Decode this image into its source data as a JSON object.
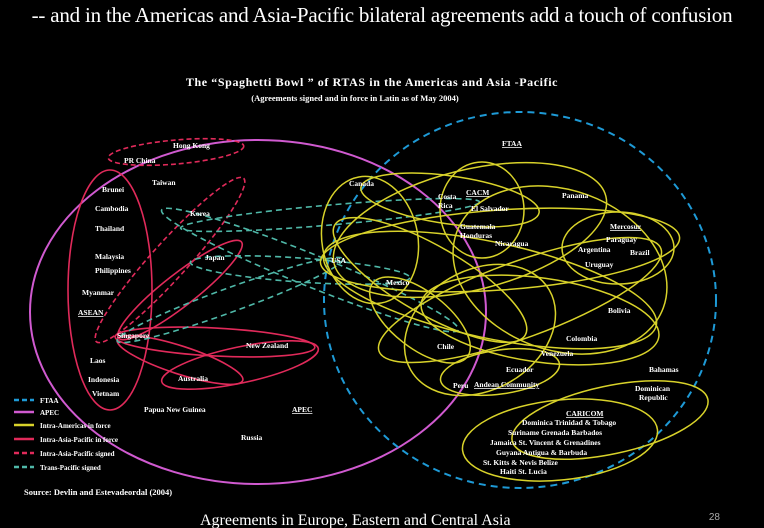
{
  "headline": "-- and in the Americas and Asia-Pacific bilateral agreements add a touch of confusion",
  "title": "The “Spaghetti Bowl ” of RTAS in the Americas and Asia -Pacific",
  "subtitle": "(Agreements signed and in force in Latin as of May 2004)",
  "colors": {
    "ftaa": "#1e9ad6",
    "apec": "#d05ad0",
    "intra_americas": "#d8d22a",
    "intra_asia_force": "#e02a5a",
    "intra_asia_signed": "#e02a5a",
    "trans_pacific": "#4fb8a8"
  },
  "groups": {
    "ftaa": "FTAA",
    "cacm": "CACM",
    "mercosur": "Mercosur",
    "asean": "ASEAN",
    "apec": "APEC",
    "andean": "Andean Community",
    "caricom": "CARICOM"
  },
  "countries": {
    "hong_kong": "Hong Kong",
    "pr_china": "PR China",
    "taiwan": "Taiwan",
    "korea": "Korea",
    "brunei": "Brunei",
    "cambodia": "Cambodia",
    "thailand": "Thailand",
    "malaysia": "Malaysia",
    "philippines": "Philippines",
    "myanmar": "Myanmar",
    "japan": "Japan",
    "singapore": "Singapore",
    "new_zealand": "New Zealand",
    "laos": "Laos",
    "indonesia": "Indonesia",
    "vietnam": "Vietnam",
    "australia": "Australia",
    "papua_new_guinea": "Papua New Guinea",
    "russia": "Russia",
    "canada": "Canada",
    "usa": "USA",
    "mexico": "Mexico",
    "costa_rica_1": "Costa",
    "costa_rica_2": "Rica",
    "el_salvador": "El Salvador",
    "guatemala": "Guatemala",
    "honduras": "Honduras",
    "nicaragua": "Nicaragua",
    "panama": "Panama",
    "paraguay": "Paraguay",
    "argentina": "Argentina",
    "brazil": "Brazil",
    "uruguay": "Uruguay",
    "bolivia": "Bolivia",
    "chile": "Chile",
    "colombia": "Colombia",
    "venezuela": "Venezuela",
    "ecuador": "Ecuador",
    "peru": "Peru",
    "bahamas": "Bahamas",
    "dominican_republic_1": "Dominican",
    "dominican_republic_2": "Republic",
    "caricom_line1": "Dominica   Trinidad & Tobago",
    "caricom_line2": "Suriname    Grenada   Barbados",
    "caricom_line3": "Jamaica   St. Vincent & Grenadines",
    "caricom_line4": "Guyana  Antigua & Barbuda",
    "caricom_line5": "St. Kitts & Nevis   Belize",
    "caricom_line6": "Haiti   St. Lucia"
  },
  "legend": [
    {
      "label": "FTAA",
      "color": "#1e9ad6",
      "style": "dashed"
    },
    {
      "label": "APEC",
      "color": "#d05ad0",
      "style": "solid"
    },
    {
      "label": "Intra-Americas in force",
      "color": "#d8d22a",
      "style": "solid"
    },
    {
      "label": "Intra-Asia-Pacific in force",
      "color": "#e02a5a",
      "style": "solid"
    },
    {
      "label": "Intra-Asia-Pacific signed",
      "color": "#e02a5a",
      "style": "dashed"
    },
    {
      "label": "Trans-Pacific signed",
      "color": "#4fb8a8",
      "style": "dashed"
    }
  ],
  "source": "Source: Devlin and Estevadeordal (2004)",
  "bottom_cut_text": "Agreements in Europe, Eastern and Central Asia",
  "slide_number": "28"
}
